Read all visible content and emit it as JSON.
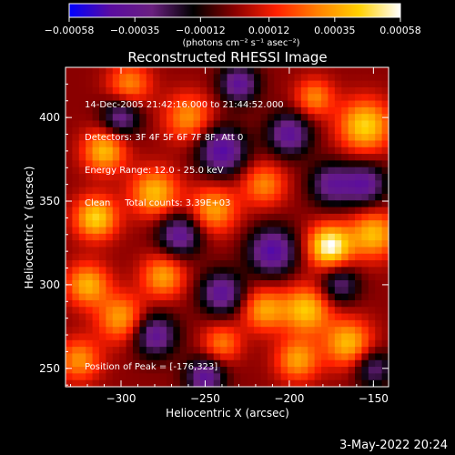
{
  "chart_data": {
    "type": "heatmap",
    "title": "Reconstructed RHESSI Image",
    "xlabel": "Heliocentric X (arcsec)",
    "ylabel": "Heliocentric Y (arcsec)",
    "xlim": [
      -333,
      -141
    ],
    "ylim": [
      239,
      430
    ],
    "x_ticks": [
      -300,
      -250,
      -200,
      -150
    ],
    "x_tick_labels": [
      "−300",
      "−250",
      "−200",
      "−150"
    ],
    "y_ticks": [
      250,
      300,
      350,
      400
    ],
    "y_tick_labels": [
      "250",
      "300",
      "350",
      "400"
    ],
    "grid": false,
    "colorbar": {
      "min": -0.00058,
      "max": 0.00058,
      "ticks": [
        -0.00058,
        -0.00035,
        -0.00012,
        0.00012,
        0.00035,
        0.00058
      ],
      "tick_labels": [
        "−0.00058",
        "−0.00035",
        "−0.00012",
        "0.00012",
        "0.00035",
        "0.00058"
      ],
      "unit_label": "(photons cm⁻² s⁻¹ asec⁻²)",
      "colors": [
        "#0000ff",
        "#5a0ca0",
        "#6a2080",
        "#000000",
        "#8a0000",
        "#ff2000",
        "#ff8000",
        "#ffd000",
        "#ffffff"
      ]
    },
    "peak_position": [
      -176,
      323
    ],
    "peak_value": 0.00058,
    "blobs": [
      {
        "x": -176,
        "y": 323,
        "sigma": 9,
        "value": 0.00058
      },
      {
        "x": -190,
        "y": 285,
        "sigma": 10,
        "value": 0.00042
      },
      {
        "x": -155,
        "y": 395,
        "sigma": 11,
        "value": 0.00045
      },
      {
        "x": -150,
        "y": 330,
        "sigma": 10,
        "value": 0.0004
      },
      {
        "x": -280,
        "y": 355,
        "sigma": 10,
        "value": 0.0004
      },
      {
        "x": -315,
        "y": 340,
        "sigma": 9,
        "value": 0.00045
      },
      {
        "x": -310,
        "y": 380,
        "sigma": 9,
        "value": 0.0004
      },
      {
        "x": -320,
        "y": 300,
        "sigma": 9,
        "value": 0.00038
      },
      {
        "x": -300,
        "y": 280,
        "sigma": 10,
        "value": 0.00035
      },
      {
        "x": -275,
        "y": 305,
        "sigma": 9,
        "value": 0.00035
      },
      {
        "x": -245,
        "y": 345,
        "sigma": 10,
        "value": 0.00035
      },
      {
        "x": -215,
        "y": 360,
        "sigma": 9,
        "value": 0.0003
      },
      {
        "x": -260,
        "y": 400,
        "sigma": 10,
        "value": 0.00032
      },
      {
        "x": -215,
        "y": 285,
        "sigma": 9,
        "value": 0.00035
      },
      {
        "x": -240,
        "y": 265,
        "sigma": 8,
        "value": 0.00028
      },
      {
        "x": -165,
        "y": 265,
        "sigma": 10,
        "value": 0.0004
      },
      {
        "x": -195,
        "y": 255,
        "sigma": 9,
        "value": 0.00035
      },
      {
        "x": -325,
        "y": 255,
        "sigma": 9,
        "value": 0.00032
      },
      {
        "x": -185,
        "y": 412,
        "sigma": 8,
        "value": 0.0003
      },
      {
        "x": -295,
        "y": 420,
        "sigma": 9,
        "value": 0.0003
      },
      {
        "x": -230,
        "y": 420,
        "sigma": 8,
        "value": -0.0004
      },
      {
        "x": -265,
        "y": 330,
        "sigma": 9,
        "value": -0.0004
      },
      {
        "x": -240,
        "y": 380,
        "sigma": 10,
        "value": -0.00045
      },
      {
        "x": -280,
        "y": 270,
        "sigma": 9,
        "value": -0.0004
      },
      {
        "x": -240,
        "y": 295,
        "sigma": 9,
        "value": -0.0004
      },
      {
        "x": -210,
        "y": 320,
        "sigma": 10,
        "value": -0.00045
      },
      {
        "x": -175,
        "y": 360,
        "sigma": 9,
        "value": -0.00035
      },
      {
        "x": -155,
        "y": 360,
        "sigma": 9,
        "value": -0.00038
      },
      {
        "x": -200,
        "y": 390,
        "sigma": 9,
        "value": -0.0004
      },
      {
        "x": -170,
        "y": 300,
        "sigma": 8,
        "value": -0.0003
      },
      {
        "x": -250,
        "y": 245,
        "sigma": 8,
        "value": -0.0004
      },
      {
        "x": -150,
        "y": 250,
        "sigma": 8,
        "value": -0.0003
      },
      {
        "x": -300,
        "y": 400,
        "sigma": 8,
        "value": -0.00035
      }
    ]
  },
  "info": {
    "time_range": "14-Dec-2005 21:42:16.000 to 21:44:52.000",
    "detectors": "Detectors: 3F 4F 5F 6F 7F 8F, Att 0",
    "energy_range": "Energy Range: 12.0 - 25.0 keV",
    "method_counts": "Clean     Total counts: 3.39E+03",
    "peak_label": "Position of Peak = [-176,323]"
  },
  "footer_date": "3-May-2022 20:24"
}
